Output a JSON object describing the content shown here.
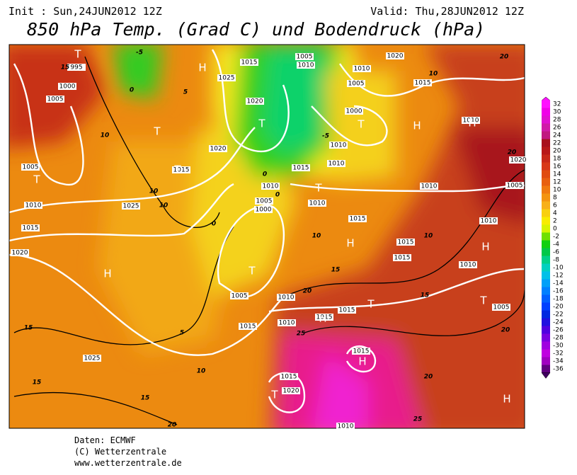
{
  "header": {
    "init": "Init : Sun,24JUN2012 12Z",
    "valid": "Valid: Thu,28JUN2012 12Z",
    "title": "850 hPa Temp. (Grad C) und Bodendruck (hPa)"
  },
  "legend": {
    "labels": [
      "32",
      "30",
      "28",
      "26",
      "24",
      "22",
      "20",
      "18",
      "16",
      "14",
      "12",
      "10",
      "8",
      "6",
      "4",
      "2",
      "0",
      "-2",
      "-4",
      "-6",
      "-8",
      "-10",
      "-12",
      "-14",
      "-16",
      "-18",
      "-20",
      "-22",
      "-24",
      "-26",
      "-28",
      "-30",
      "-32",
      "-34",
      "-36"
    ]
  },
  "map": {
    "pressure_labels": [
      "995",
      "1000",
      "1005",
      "1005",
      "1010",
      "1015",
      "1020",
      "1025",
      "1025",
      "1020",
      "1015",
      "1015",
      "1010",
      "1005",
      "1000",
      "1020",
      "1025",
      "1015",
      "1005",
      "1010",
      "1020",
      "1010",
      "1005",
      "1000",
      "1010",
      "1010",
      "1010",
      "1015",
      "1010",
      "1010",
      "1005",
      "1010",
      "1015",
      "1010",
      "1015",
      "1015",
      "1005",
      "1010",
      "1005",
      "1015",
      "1015",
      "1010",
      "1015",
      "1015",
      "1015",
      "1020",
      "1010",
      "1020"
    ],
    "temperature_labels": [
      "15",
      "-5",
      "0",
      "5",
      "10",
      "10",
      "10",
      "5",
      "10",
      "15",
      "15",
      "15",
      "20",
      "25",
      "20",
      "20",
      "25",
      "15",
      "15",
      "10",
      "10",
      "10",
      "20",
      "20",
      "20",
      "0",
      "0",
      "-5",
      "0"
    ],
    "pressure_centers": [
      "H",
      "T",
      "T",
      "T",
      "T",
      "H",
      "T",
      "H",
      "H",
      "H",
      "H",
      "T",
      "T",
      "H",
      "H",
      "T",
      "H",
      "T",
      "T",
      "T"
    ]
  },
  "footer": {
    "lines": [
      "Daten: ECMWF",
      "(C) Wetterzentrale",
      "www.wetterzentrale.de"
    ]
  }
}
